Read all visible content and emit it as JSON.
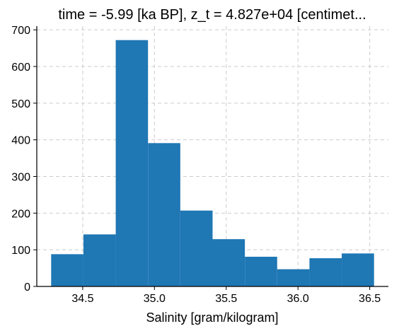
{
  "chart_data": {
    "type": "bar",
    "title": "time = -5.99 [ka BP], z_t = 4.827e+04 [centimet...",
    "xlabel": "Salinity [gram/kilogram]",
    "ylabel": "",
    "bin_edges": [
      34.28,
      34.505,
      34.73,
      34.955,
      35.18,
      35.405,
      35.63,
      35.855,
      36.08,
      36.305,
      36.53
    ],
    "values": [
      88,
      142,
      672,
      391,
      207,
      129,
      81,
      47,
      77,
      90
    ],
    "xlim": [
      34.18,
      36.63
    ],
    "ylim": [
      0,
      710
    ],
    "xticks": [
      34.5,
      35.0,
      35.5,
      36.0,
      36.5
    ],
    "xtick_labels": [
      "34.5",
      "35.0",
      "35.5",
      "36.0",
      "36.5"
    ],
    "yticks": [
      0,
      100,
      200,
      300,
      400,
      500,
      600,
      700
    ],
    "ytick_labels": [
      "0",
      "100",
      "200",
      "300",
      "400",
      "500",
      "600",
      "700"
    ],
    "grid": true,
    "bar_color": "#1f77b4",
    "grid_color": "#cccccc"
  }
}
